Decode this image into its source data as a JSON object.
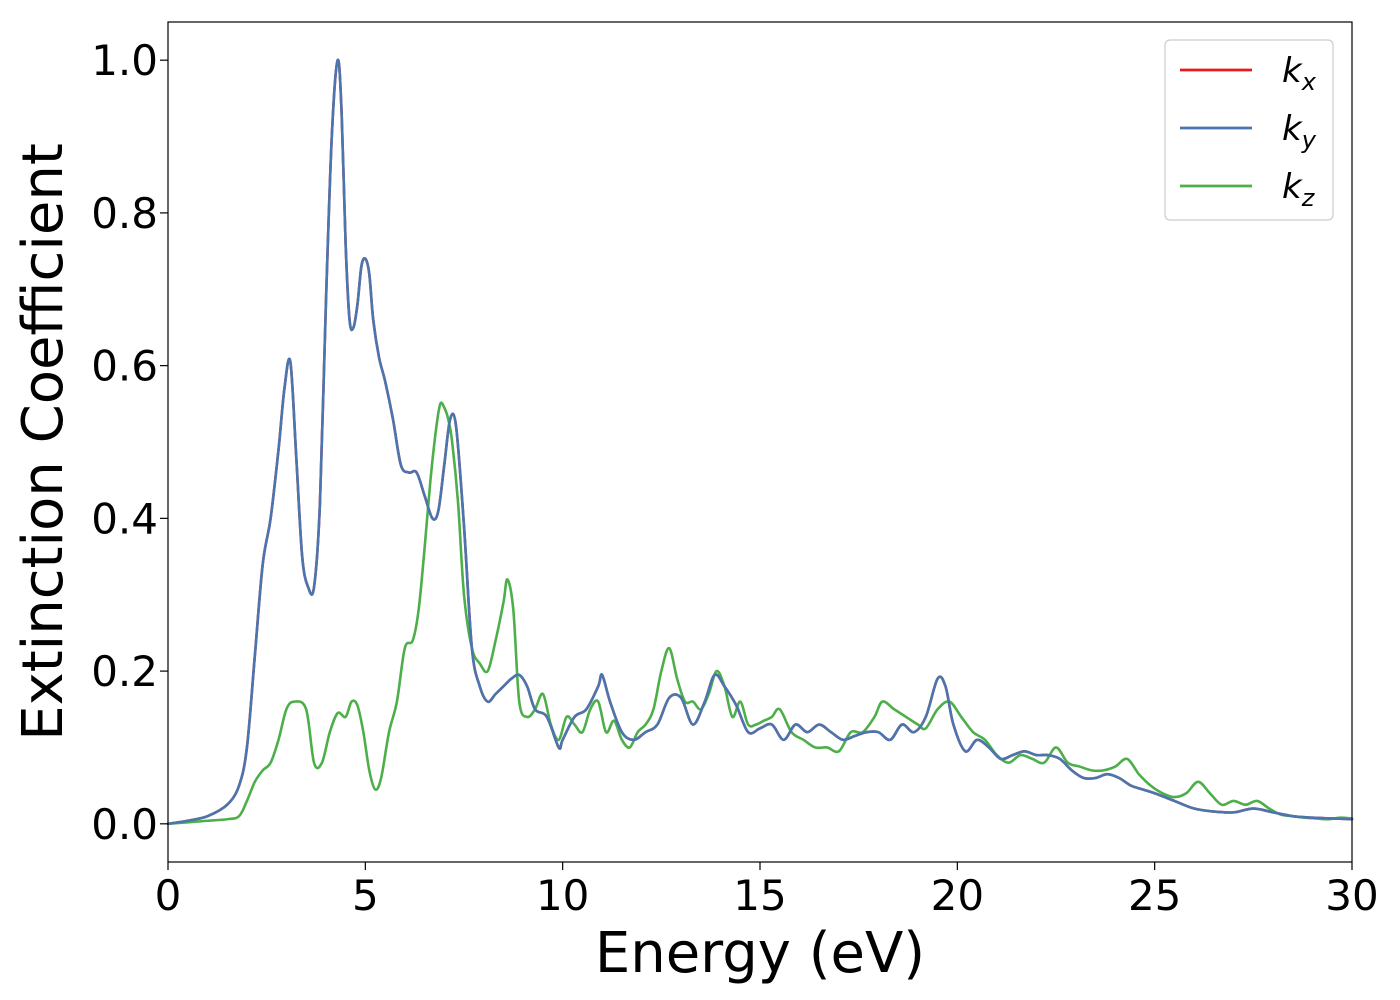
{
  "chart_data": {
    "type": "line",
    "xlabel": "Energy (eV)",
    "ylabel": "Extinction Coefficient",
    "xlim": [
      0,
      30
    ],
    "ylim": [
      -0.05,
      1.05
    ],
    "xticks": [
      0,
      5,
      10,
      15,
      20,
      25,
      30
    ],
    "xtick_labels": [
      "0",
      "5",
      "10",
      "15",
      "20",
      "25",
      "30"
    ],
    "yticks": [
      0.0,
      0.2,
      0.4,
      0.6,
      0.8,
      1.0
    ],
    "ytick_labels": [
      "0.0",
      "0.2",
      "0.4",
      "0.6",
      "0.8",
      "1.0"
    ],
    "grid": false,
    "legend_position": "top-right",
    "series": [
      {
        "name": "k",
        "subscript": "x",
        "color": "#e41a1c",
        "x": [
          0,
          0.5,
          1.0,
          1.5,
          1.8,
          2.0,
          2.2,
          2.4,
          2.6,
          2.8,
          2.95,
          3.1,
          3.25,
          3.4,
          3.55,
          3.7,
          3.85,
          4.0,
          4.15,
          4.3,
          4.4,
          4.5,
          4.6,
          4.7,
          4.8,
          4.9,
          5.0,
          5.1,
          5.2,
          5.35,
          5.5,
          5.7,
          5.9,
          6.1,
          6.3,
          6.5,
          6.7,
          6.85,
          7.0,
          7.15,
          7.3,
          7.5,
          7.7,
          7.9,
          8.1,
          8.3,
          8.5,
          8.7,
          8.9,
          9.1,
          9.3,
          9.6,
          9.9,
          10.0,
          10.3,
          10.6,
          10.9,
          11.0,
          11.2,
          11.5,
          11.8,
          12.1,
          12.4,
          12.7,
          13.0,
          13.3,
          13.6,
          13.85,
          14.1,
          14.4,
          14.7,
          15.0,
          15.3,
          15.6,
          15.9,
          16.2,
          16.5,
          16.8,
          17.1,
          17.4,
          17.7,
          18.0,
          18.3,
          18.6,
          18.9,
          19.2,
          19.5,
          19.7,
          19.9,
          20.2,
          20.5,
          20.8,
          21.1,
          21.4,
          21.7,
          22.0,
          22.3,
          22.6,
          22.9,
          23.2,
          23.5,
          23.8,
          24.1,
          24.4,
          24.7,
          25.0,
          25.5,
          26.0,
          26.5,
          27.0,
          27.5,
          28.0,
          28.5,
          29.0,
          29.5,
          30.0
        ],
        "y": [
          0.0,
          0.004,
          0.01,
          0.025,
          0.05,
          0.1,
          0.22,
          0.34,
          0.4,
          0.49,
          0.57,
          0.605,
          0.48,
          0.35,
          0.31,
          0.31,
          0.42,
          0.68,
          0.9,
          1.0,
          0.93,
          0.76,
          0.66,
          0.65,
          0.68,
          0.73,
          0.74,
          0.72,
          0.66,
          0.61,
          0.58,
          0.53,
          0.47,
          0.46,
          0.46,
          0.43,
          0.4,
          0.41,
          0.47,
          0.53,
          0.52,
          0.39,
          0.23,
          0.18,
          0.16,
          0.17,
          0.18,
          0.19,
          0.195,
          0.18,
          0.15,
          0.14,
          0.1,
          0.11,
          0.14,
          0.15,
          0.18,
          0.195,
          0.16,
          0.12,
          0.11,
          0.12,
          0.13,
          0.165,
          0.165,
          0.13,
          0.16,
          0.195,
          0.18,
          0.155,
          0.12,
          0.125,
          0.13,
          0.11,
          0.13,
          0.12,
          0.13,
          0.12,
          0.11,
          0.115,
          0.12,
          0.12,
          0.11,
          0.13,
          0.12,
          0.14,
          0.19,
          0.18,
          0.13,
          0.095,
          0.11,
          0.1,
          0.085,
          0.09,
          0.095,
          0.09,
          0.09,
          0.085,
          0.07,
          0.06,
          0.06,
          0.065,
          0.06,
          0.05,
          0.045,
          0.04,
          0.03,
          0.02,
          0.016,
          0.015,
          0.02,
          0.015,
          0.01,
          0.008,
          0.007,
          0.006
        ]
      },
      {
        "name": "k",
        "subscript": "y",
        "color": "#4a76b0",
        "x": [
          0,
          0.5,
          1.0,
          1.5,
          1.8,
          2.0,
          2.2,
          2.4,
          2.6,
          2.8,
          2.95,
          3.1,
          3.25,
          3.4,
          3.55,
          3.7,
          3.85,
          4.0,
          4.15,
          4.3,
          4.4,
          4.5,
          4.6,
          4.7,
          4.8,
          4.9,
          5.0,
          5.1,
          5.2,
          5.35,
          5.5,
          5.7,
          5.9,
          6.1,
          6.3,
          6.5,
          6.7,
          6.85,
          7.0,
          7.15,
          7.3,
          7.5,
          7.7,
          7.9,
          8.1,
          8.3,
          8.5,
          8.7,
          8.9,
          9.1,
          9.3,
          9.6,
          9.9,
          10.0,
          10.3,
          10.6,
          10.9,
          11.0,
          11.2,
          11.5,
          11.8,
          12.1,
          12.4,
          12.7,
          13.0,
          13.3,
          13.6,
          13.85,
          14.1,
          14.4,
          14.7,
          15.0,
          15.3,
          15.6,
          15.9,
          16.2,
          16.5,
          16.8,
          17.1,
          17.4,
          17.7,
          18.0,
          18.3,
          18.6,
          18.9,
          19.2,
          19.5,
          19.7,
          19.9,
          20.2,
          20.5,
          20.8,
          21.1,
          21.4,
          21.7,
          22.0,
          22.3,
          22.6,
          22.9,
          23.2,
          23.5,
          23.8,
          24.1,
          24.4,
          24.7,
          25.0,
          25.5,
          26.0,
          26.5,
          27.0,
          27.5,
          28.0,
          28.5,
          29.0,
          29.5,
          30.0
        ],
        "y": [
          0.0,
          0.004,
          0.01,
          0.025,
          0.05,
          0.1,
          0.22,
          0.34,
          0.4,
          0.49,
          0.57,
          0.605,
          0.48,
          0.35,
          0.31,
          0.31,
          0.42,
          0.68,
          0.9,
          1.0,
          0.93,
          0.76,
          0.66,
          0.65,
          0.68,
          0.73,
          0.74,
          0.72,
          0.66,
          0.61,
          0.58,
          0.53,
          0.47,
          0.46,
          0.46,
          0.43,
          0.4,
          0.41,
          0.47,
          0.53,
          0.52,
          0.39,
          0.23,
          0.18,
          0.16,
          0.17,
          0.18,
          0.19,
          0.195,
          0.18,
          0.15,
          0.14,
          0.1,
          0.11,
          0.14,
          0.15,
          0.18,
          0.195,
          0.16,
          0.12,
          0.11,
          0.12,
          0.13,
          0.165,
          0.165,
          0.13,
          0.16,
          0.195,
          0.18,
          0.155,
          0.12,
          0.125,
          0.13,
          0.11,
          0.13,
          0.12,
          0.13,
          0.12,
          0.11,
          0.115,
          0.12,
          0.12,
          0.11,
          0.13,
          0.12,
          0.14,
          0.19,
          0.18,
          0.13,
          0.095,
          0.11,
          0.1,
          0.085,
          0.09,
          0.095,
          0.09,
          0.09,
          0.085,
          0.07,
          0.06,
          0.06,
          0.065,
          0.06,
          0.05,
          0.045,
          0.04,
          0.03,
          0.02,
          0.016,
          0.015,
          0.02,
          0.015,
          0.01,
          0.008,
          0.007,
          0.006
        ]
      },
      {
        "name": "k",
        "subscript": "z",
        "color": "#4daf4a",
        "x": [
          0,
          0.5,
          1.0,
          1.5,
          1.8,
          2.0,
          2.2,
          2.4,
          2.6,
          2.8,
          3.0,
          3.2,
          3.5,
          3.7,
          3.9,
          4.1,
          4.3,
          4.5,
          4.65,
          4.8,
          4.95,
          5.1,
          5.25,
          5.4,
          5.6,
          5.8,
          6.0,
          6.2,
          6.35,
          6.5,
          6.65,
          6.8,
          6.9,
          7.0,
          7.1,
          7.2,
          7.35,
          7.5,
          7.7,
          7.9,
          8.1,
          8.3,
          8.5,
          8.6,
          8.75,
          8.9,
          9.1,
          9.3,
          9.5,
          9.7,
          9.9,
          10.1,
          10.3,
          10.5,
          10.7,
          10.9,
          11.1,
          11.3,
          11.5,
          11.7,
          11.9,
          12.1,
          12.3,
          12.5,
          12.7,
          12.9,
          13.1,
          13.3,
          13.5,
          13.7,
          13.9,
          14.1,
          14.3,
          14.5,
          14.7,
          14.9,
          15.1,
          15.3,
          15.5,
          15.8,
          16.1,
          16.4,
          16.7,
          17.0,
          17.3,
          17.6,
          17.9,
          18.1,
          18.4,
          18.7,
          19.0,
          19.2,
          19.5,
          19.8,
          20.1,
          20.4,
          20.7,
          21.0,
          21.3,
          21.6,
          21.9,
          22.2,
          22.5,
          22.8,
          23.1,
          23.4,
          23.7,
          24.0,
          24.3,
          24.6,
          24.9,
          25.2,
          25.5,
          25.8,
          26.1,
          26.4,
          26.7,
          27.0,
          27.3,
          27.6,
          27.9,
          28.2,
          28.5,
          28.8,
          29.1,
          29.4,
          29.7,
          30.0
        ],
        "y": [
          0.0,
          0.002,
          0.004,
          0.006,
          0.01,
          0.03,
          0.055,
          0.07,
          0.08,
          0.11,
          0.15,
          0.16,
          0.15,
          0.08,
          0.08,
          0.12,
          0.145,
          0.14,
          0.16,
          0.155,
          0.12,
          0.07,
          0.045,
          0.06,
          0.12,
          0.16,
          0.23,
          0.24,
          0.28,
          0.36,
          0.45,
          0.52,
          0.55,
          0.545,
          0.53,
          0.5,
          0.42,
          0.3,
          0.23,
          0.21,
          0.2,
          0.24,
          0.29,
          0.32,
          0.28,
          0.16,
          0.14,
          0.15,
          0.17,
          0.13,
          0.11,
          0.14,
          0.13,
          0.12,
          0.15,
          0.16,
          0.12,
          0.135,
          0.11,
          0.1,
          0.12,
          0.13,
          0.15,
          0.2,
          0.23,
          0.19,
          0.16,
          0.16,
          0.15,
          0.17,
          0.2,
          0.18,
          0.14,
          0.16,
          0.13,
          0.13,
          0.135,
          0.14,
          0.15,
          0.12,
          0.11,
          0.1,
          0.1,
          0.095,
          0.12,
          0.12,
          0.14,
          0.16,
          0.15,
          0.14,
          0.13,
          0.125,
          0.15,
          0.16,
          0.14,
          0.12,
          0.11,
          0.09,
          0.08,
          0.09,
          0.085,
          0.08,
          0.1,
          0.08,
          0.075,
          0.07,
          0.07,
          0.075,
          0.085,
          0.065,
          0.05,
          0.04,
          0.035,
          0.04,
          0.055,
          0.04,
          0.025,
          0.03,
          0.025,
          0.03,
          0.02,
          0.012,
          0.01,
          0.008,
          0.007,
          0.006,
          0.008,
          0.007
        ]
      }
    ]
  }
}
